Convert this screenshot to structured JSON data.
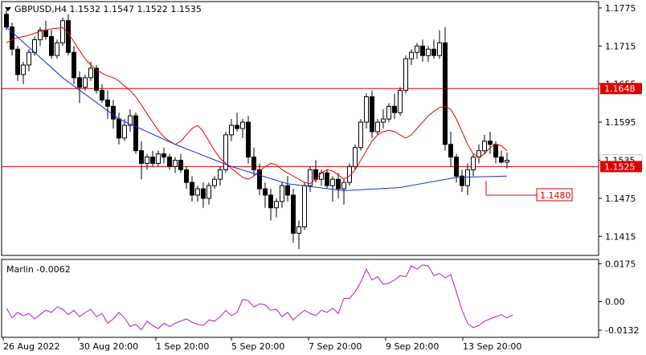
{
  "chart_data": [
    {
      "type": "candlestick",
      "header": "GBPUSD,H4 1.1532 1.1547 1.1522 1.1535",
      "y_ticks": [
        "1.1775",
        "1.1715",
        "1.1655",
        "1.1595",
        "1.1535",
        "1.1475",
        "1.1415"
      ],
      "ylim": [
        1.1385,
        1.1785
      ],
      "x_tick_labels": [
        "26 Aug 2022",
        "30 Aug 20:00",
        "1 Sep 20:00",
        "5 Sep 20:00",
        "7 Sep 20:00",
        "9 Sep 20:00",
        "13 Sep 20:00"
      ],
      "horizontal_levels": [
        {
          "value": 1.1648,
          "label": "1.1648",
          "color": "#e00000"
        },
        {
          "value": 1.1525,
          "label": "1.1525",
          "color": "#e00000"
        }
      ],
      "last_price": {
        "value": 1.1535,
        "label": "1.1535"
      },
      "target": {
        "value": 1.148,
        "label": "1.1480"
      },
      "ohlc": [
        [
          1.1765,
          1.1772,
          1.174,
          1.1745
        ],
        [
          1.1745,
          1.1752,
          1.17,
          1.171
        ],
        [
          1.171,
          1.1715,
          1.166,
          1.167
        ],
        [
          1.167,
          1.169,
          1.1655,
          1.1685
        ],
        [
          1.1685,
          1.171,
          1.1675,
          1.1705
        ],
        [
          1.1705,
          1.173,
          1.17,
          1.1725
        ],
        [
          1.1725,
          1.1745,
          1.1715,
          1.174
        ],
        [
          1.174,
          1.1755,
          1.1725,
          1.173
        ],
        [
          1.173,
          1.174,
          1.1695,
          1.17
        ],
        [
          1.17,
          1.1725,
          1.1695,
          1.172
        ],
        [
          1.172,
          1.176,
          1.1715,
          1.1755
        ],
        [
          1.1755,
          1.1765,
          1.17,
          1.1705
        ],
        [
          1.1705,
          1.1715,
          1.1655,
          1.1665
        ],
        [
          1.1665,
          1.1675,
          1.1625,
          1.165
        ],
        [
          1.165,
          1.167,
          1.1645,
          1.1665
        ],
        [
          1.1665,
          1.169,
          1.166,
          1.168
        ],
        [
          1.168,
          1.1685,
          1.164,
          1.1645
        ],
        [
          1.1645,
          1.1655,
          1.1625,
          1.163
        ],
        [
          1.163,
          1.1645,
          1.16,
          1.162
        ],
        [
          1.162,
          1.163,
          1.1585,
          1.16
        ],
        [
          1.16,
          1.161,
          1.156,
          1.157
        ],
        [
          1.157,
          1.16,
          1.1565,
          1.159
        ],
        [
          1.159,
          1.1615,
          1.158,
          1.1605
        ],
        [
          1.1605,
          1.161,
          1.1545,
          1.155
        ],
        [
          1.155,
          1.1565,
          1.1505,
          1.153
        ],
        [
          1.153,
          1.1545,
          1.152,
          1.154
        ],
        [
          1.154,
          1.155,
          1.1525,
          1.153
        ],
        [
          1.153,
          1.155,
          1.1525,
          1.1545
        ],
        [
          1.1545,
          1.1555,
          1.153,
          1.154
        ],
        [
          1.154,
          1.1545,
          1.152,
          1.1525
        ],
        [
          1.1525,
          1.154,
          1.1515,
          1.1535
        ],
        [
          1.1535,
          1.1545,
          1.1515,
          1.152
        ],
        [
          1.152,
          1.1525,
          1.149,
          1.15
        ],
        [
          1.15,
          1.151,
          1.147,
          1.148
        ],
        [
          1.148,
          1.1495,
          1.147,
          1.149
        ],
        [
          1.149,
          1.15,
          1.146,
          1.1475
        ],
        [
          1.1475,
          1.15,
          1.1465,
          1.1495
        ],
        [
          1.1495,
          1.151,
          1.149,
          1.1505
        ],
        [
          1.1505,
          1.1525,
          1.1495,
          1.152
        ],
        [
          1.152,
          1.158,
          1.1515,
          1.1575
        ],
        [
          1.1575,
          1.16,
          1.1565,
          1.159
        ],
        [
          1.159,
          1.161,
          1.158,
          1.1585
        ],
        [
          1.1585,
          1.16,
          1.157,
          1.1595
        ],
        [
          1.1595,
          1.1605,
          1.153,
          1.154
        ],
        [
          1.154,
          1.1555,
          1.151,
          1.152
        ],
        [
          1.152,
          1.153,
          1.148,
          1.149
        ],
        [
          1.149,
          1.15,
          1.146,
          1.148
        ],
        [
          1.148,
          1.149,
          1.144,
          1.146
        ],
        [
          1.146,
          1.1475,
          1.1445,
          1.147
        ],
        [
          1.147,
          1.15,
          1.146,
          1.1495
        ],
        [
          1.1495,
          1.151,
          1.147,
          1.148
        ],
        [
          1.148,
          1.149,
          1.1405,
          1.142
        ],
        [
          1.142,
          1.144,
          1.1395,
          1.143
        ],
        [
          1.143,
          1.15,
          1.1425,
          1.1495
        ],
        [
          1.1495,
          1.1525,
          1.1485,
          1.152
        ],
        [
          1.152,
          1.1535,
          1.15,
          1.1505
        ],
        [
          1.1505,
          1.152,
          1.1495,
          1.1515
        ],
        [
          1.1515,
          1.152,
          1.149,
          1.1495
        ],
        [
          1.1495,
          1.151,
          1.147,
          1.1505
        ],
        [
          1.1505,
          1.1515,
          1.1475,
          1.149
        ],
        [
          1.149,
          1.1505,
          1.1465,
          1.15
        ],
        [
          1.15,
          1.153,
          1.1495,
          1.1525
        ],
        [
          1.1525,
          1.156,
          1.152,
          1.1555
        ],
        [
          1.1555,
          1.16,
          1.155,
          1.1595
        ],
        [
          1.1595,
          1.164,
          1.1585,
          1.1635
        ],
        [
          1.1635,
          1.1645,
          1.157,
          1.158
        ],
        [
          1.158,
          1.16,
          1.1575,
          1.1595
        ],
        [
          1.1595,
          1.1615,
          1.1585,
          1.16
        ],
        [
          1.16,
          1.1625,
          1.1595,
          1.162
        ],
        [
          1.162,
          1.164,
          1.16,
          1.161
        ],
        [
          1.161,
          1.165,
          1.1605,
          1.1645
        ],
        [
          1.1645,
          1.17,
          1.164,
          1.1695
        ],
        [
          1.1695,
          1.171,
          1.1685,
          1.1705
        ],
        [
          1.1705,
          1.172,
          1.1695,
          1.1715
        ],
        [
          1.1715,
          1.1725,
          1.169,
          1.17
        ],
        [
          1.17,
          1.1715,
          1.169,
          1.171
        ],
        [
          1.171,
          1.1725,
          1.1695,
          1.17
        ],
        [
          1.17,
          1.174,
          1.1695,
          1.172
        ],
        [
          1.172,
          1.1745,
          1.155,
          1.156
        ],
        [
          1.156,
          1.158,
          1.1525,
          1.154
        ],
        [
          1.154,
          1.1545,
          1.15,
          1.151
        ],
        [
          1.151,
          1.152,
          1.1485,
          1.1495
        ],
        [
          1.1495,
          1.153,
          1.148,
          1.152
        ],
        [
          1.152,
          1.1545,
          1.151,
          1.154
        ],
        [
          1.154,
          1.156,
          1.153,
          1.155
        ],
        [
          1.155,
          1.1575,
          1.1545,
          1.1565
        ],
        [
          1.1565,
          1.158,
          1.1545,
          1.156
        ],
        [
          1.156,
          1.1565,
          1.153,
          1.154
        ],
        [
          1.154,
          1.155,
          1.153,
          1.1532
        ],
        [
          1.1532,
          1.1547,
          1.1522,
          1.1535
        ]
      ],
      "ema_fast": [
        1.172,
        1.1725,
        1.1728,
        1.173,
        1.1732,
        1.1735,
        1.1738,
        1.174,
        1.1742,
        1.1743,
        1.1744,
        1.1735,
        1.1722,
        1.1708,
        1.1695,
        1.1685,
        1.1678,
        1.1672,
        1.1668,
        1.1665,
        1.166,
        1.1652,
        1.1645,
        1.1635,
        1.1622,
        1.1608,
        1.1595,
        1.1582,
        1.1572,
        1.1565,
        1.156,
        1.1565,
        1.1575,
        1.1585,
        1.159,
        1.158,
        1.1565,
        1.155,
        1.1538,
        1.153,
        1.1522,
        1.1515,
        1.1508,
        1.1505,
        1.151,
        1.1518,
        1.1525,
        1.153,
        1.1528,
        1.152,
        1.1515,
        1.151,
        1.1505,
        1.15,
        1.1498,
        1.1505,
        1.1515,
        1.152,
        1.1518,
        1.1512,
        1.1505,
        1.151,
        1.152,
        1.1535,
        1.155,
        1.1565,
        1.1575,
        1.158,
        1.1582,
        1.158,
        1.1575,
        1.157,
        1.1575,
        1.1585,
        1.1595,
        1.1605,
        1.1612,
        1.1618,
        1.162,
        1.1615,
        1.16,
        1.158,
        1.156,
        1.1545,
        1.154,
        1.1545,
        1.1555,
        1.156,
        1.1558,
        1.155
      ],
      "ma_slow": [
        1.1745,
        1.1665,
        1.16,
        1.156,
        1.1525,
        1.1498,
        1.1487,
        1.1492,
        1.1508,
        1.151
      ],
      "ma_slow_step": 10
    },
    {
      "type": "line",
      "header": "Marlin -0.0062",
      "y_ticks": [
        "0.0175",
        "0.00",
        "-0.0132"
      ],
      "ylim": [
        -0.0165,
        0.0195
      ],
      "values": [
        -0.003,
        -0.0075,
        -0.005,
        -0.0065,
        -0.0055,
        -0.008,
        -0.006,
        -0.004,
        -0.005,
        -0.0025,
        -0.0035,
        -0.006,
        -0.004,
        -0.007,
        -0.005,
        -0.0035,
        -0.007,
        -0.0055,
        -0.01,
        -0.008,
        -0.005,
        -0.0075,
        -0.0115,
        -0.0105,
        -0.013,
        -0.009,
        -0.011,
        -0.0125,
        -0.01,
        -0.0115,
        -0.01,
        -0.009,
        -0.008,
        -0.0095,
        -0.0105,
        -0.011,
        -0.0085,
        -0.009,
        -0.007,
        -0.004,
        -0.0065,
        -0.005,
        0.001,
        0.0005,
        -0.0025,
        -0.001,
        -0.0015,
        -0.004,
        -0.0035,
        -0.007,
        -0.005,
        -0.0085,
        -0.006,
        -0.004,
        -0.0055,
        -0.0065,
        -0.004,
        -0.005,
        -0.003,
        -0.0055,
        0.0015,
        0.0015,
        0.0045,
        0.009,
        0.015,
        0.01,
        0.0115,
        0.008,
        0.0085,
        0.01,
        0.012,
        0.0115,
        0.0165,
        0.015,
        0.017,
        0.0165,
        0.012,
        0.013,
        0.011,
        0.0125,
        0.0045,
        -0.004,
        -0.01,
        -0.012,
        -0.011,
        -0.009,
        -0.008,
        -0.007,
        -0.006,
        -0.0075,
        -0.0062
      ]
    }
  ]
}
